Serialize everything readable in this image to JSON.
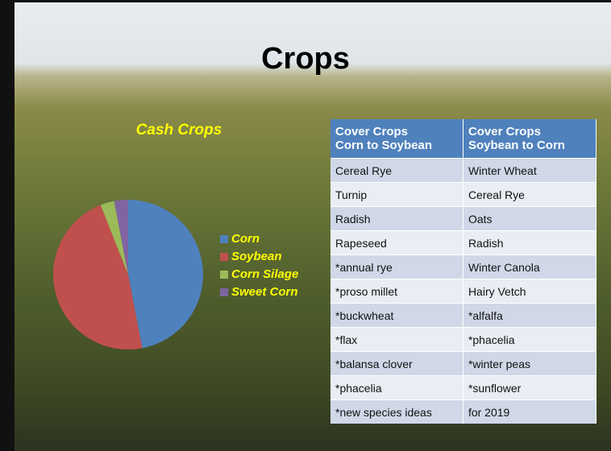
{
  "title": "Crops",
  "chart_data": {
    "type": "pie",
    "title": "Cash Crops",
    "categories": [
      "Corn",
      "Soybean",
      "Corn Silage",
      "Sweet Corn"
    ],
    "values": [
      47,
      47,
      3,
      3
    ],
    "colors": [
      "#4f81bd",
      "#c0504d",
      "#9bbb59",
      "#8064a2"
    ],
    "legend": "right"
  },
  "table": {
    "header": [
      "Cover Crops\nCorn to Soybean",
      "Cover Crops\nSoybean to Corn"
    ],
    "rows": [
      [
        "Cereal Rye",
        "Winter Wheat"
      ],
      [
        "Turnip",
        "Cereal Rye"
      ],
      [
        "Radish",
        "Oats"
      ],
      [
        "Rapeseed",
        "Radish"
      ],
      [
        "*annual rye",
        "Winter Canola"
      ],
      [
        "*proso millet",
        "Hairy Vetch"
      ],
      [
        "*buckwheat",
        "*alfalfa"
      ],
      [
        "*flax",
        "*phacelia"
      ],
      [
        "*balansa clover",
        "*winter peas"
      ],
      [
        "*phacelia",
        "*sunflower"
      ],
      [
        "*new species ideas",
        "for 2019"
      ]
    ]
  }
}
